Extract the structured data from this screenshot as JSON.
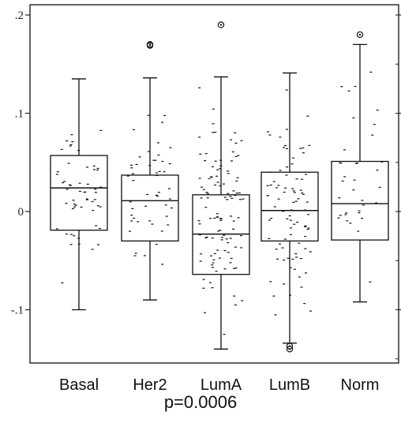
{
  "chart_data": {
    "type": "boxplot",
    "categories": [
      "Basal",
      "Her2",
      "LumA",
      "LumB",
      "Norm"
    ],
    "y_tick_labels": [
      ".2",
      ".1",
      "0",
      "-.1"
    ],
    "y_ticks": [
      0.2,
      0.1,
      0.0,
      -0.1
    ],
    "ylim": [
      -0.155,
      0.21
    ],
    "grid": false,
    "boxes": [
      {
        "category": "Basal",
        "whisker_low": -0.1,
        "q1": -0.019,
        "median": 0.024,
        "q3": 0.057,
        "whisker_high": 0.135,
        "outliers": [],
        "n_points": 55
      },
      {
        "category": "Her2",
        "whisker_low": -0.09,
        "q1": -0.03,
        "median": 0.011,
        "q3": 0.037,
        "whisker_high": 0.136,
        "outliers": [
          0.17,
          0.169
        ],
        "n_points": 50
      },
      {
        "category": "LumA",
        "whisker_low": -0.14,
        "q1": -0.064,
        "median": -0.023,
        "q3": 0.017,
        "whisker_high": 0.137,
        "outliers": [
          0.19
        ],
        "n_points": 110
      },
      {
        "category": "LumB",
        "whisker_low": -0.134,
        "q1": -0.03,
        "median": 0.001,
        "q3": 0.04,
        "whisker_high": 0.141,
        "outliers": [
          -0.137,
          -0.14
        ],
        "n_points": 90
      },
      {
        "category": "Norm",
        "whisker_low": -0.092,
        "q1": -0.029,
        "median": 0.008,
        "q3": 0.051,
        "whisker_high": 0.17,
        "outliers": [
          0.18
        ],
        "n_points": 35
      }
    ],
    "annotation": "p=0.0006"
  }
}
